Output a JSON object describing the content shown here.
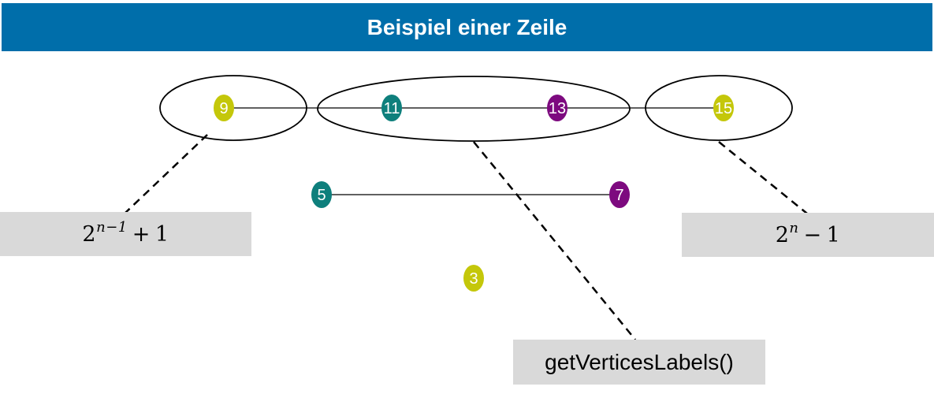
{
  "title": "Beispiel einer Zeile",
  "colors": {
    "header_bg": "#006eaa",
    "yellow": "#c4c70a",
    "teal": "#0e7f7c",
    "purple": "#7d0a7f",
    "callout_bg": "#d9d9d9"
  },
  "nodes": {
    "n9": "9",
    "n11": "11",
    "n13": "13",
    "n15": "15",
    "n5": "5",
    "n7": "7",
    "n3": "3"
  },
  "callouts": {
    "left_formula": {
      "base": "2",
      "exponent": "n−1",
      "operator": "+",
      "constant": "1"
    },
    "right_formula": {
      "base": "2",
      "exponent": "n",
      "operator": "−",
      "constant": "1"
    },
    "method": "getVerticesLabels()"
  }
}
